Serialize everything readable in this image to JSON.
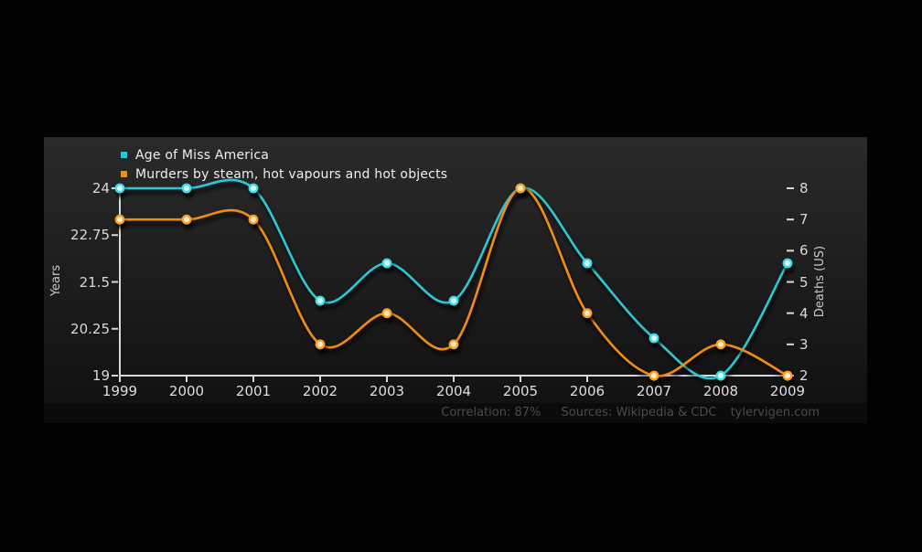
{
  "footer": {
    "correlation": "Correlation: 87%",
    "sources": "Sources: Wikipedia & CDC",
    "site": "tylervigen.com"
  },
  "colors": {
    "page_bg": "#020202",
    "panel_top": "#2a2a2a",
    "panel_bottom": "#101010",
    "axis": "#d9d9d9",
    "tick_text": "#d8d8d8",
    "legend_text": "#efefef",
    "footer_text": "#4b4b4b",
    "cyan_series": "#2fc6d2",
    "orange_series": "#ef8c12"
  },
  "chart_data": {
    "type": "line",
    "x": [
      1999,
      2000,
      2001,
      2002,
      2003,
      2004,
      2005,
      2006,
      2007,
      2008,
      2009
    ],
    "series": [
      {
        "name": "Age of Miss America",
        "axis": "left",
        "color": "#2fc6d2",
        "marker_ring": "#3edde9",
        "marker_fill": "#e3fcff",
        "values": [
          24,
          24,
          24,
          21,
          22,
          21,
          24,
          22,
          20,
          19,
          22
        ]
      },
      {
        "name": "Murders by steam, hot vapours and hot objects",
        "axis": "right",
        "color": "#ef8c12",
        "marker_ring": "#ffa01e",
        "marker_fill": "#fff1d6",
        "values": [
          7,
          7,
          7,
          3,
          4,
          3,
          8,
          4,
          2,
          3,
          2
        ]
      }
    ],
    "left_axis": {
      "label": "Years",
      "min": 19,
      "max": 24,
      "ticks": [
        24,
        22.75,
        21.5,
        20.25,
        19
      ]
    },
    "right_axis": {
      "label": "Deaths (US)",
      "min": 2,
      "max": 8,
      "ticks": [
        8,
        7,
        6,
        5,
        4,
        3,
        2
      ]
    },
    "x_axis": {
      "ticks": [
        1999,
        2000,
        2001,
        2002,
        2003,
        2004,
        2005,
        2006,
        2007,
        2008,
        2009
      ]
    },
    "grid": false,
    "legend_position": "top-left",
    "smoothing": "spline",
    "annotations": [
      "Correlation: 87%",
      "Sources: Wikipedia & CDC",
      "tylervigen.com"
    ]
  }
}
